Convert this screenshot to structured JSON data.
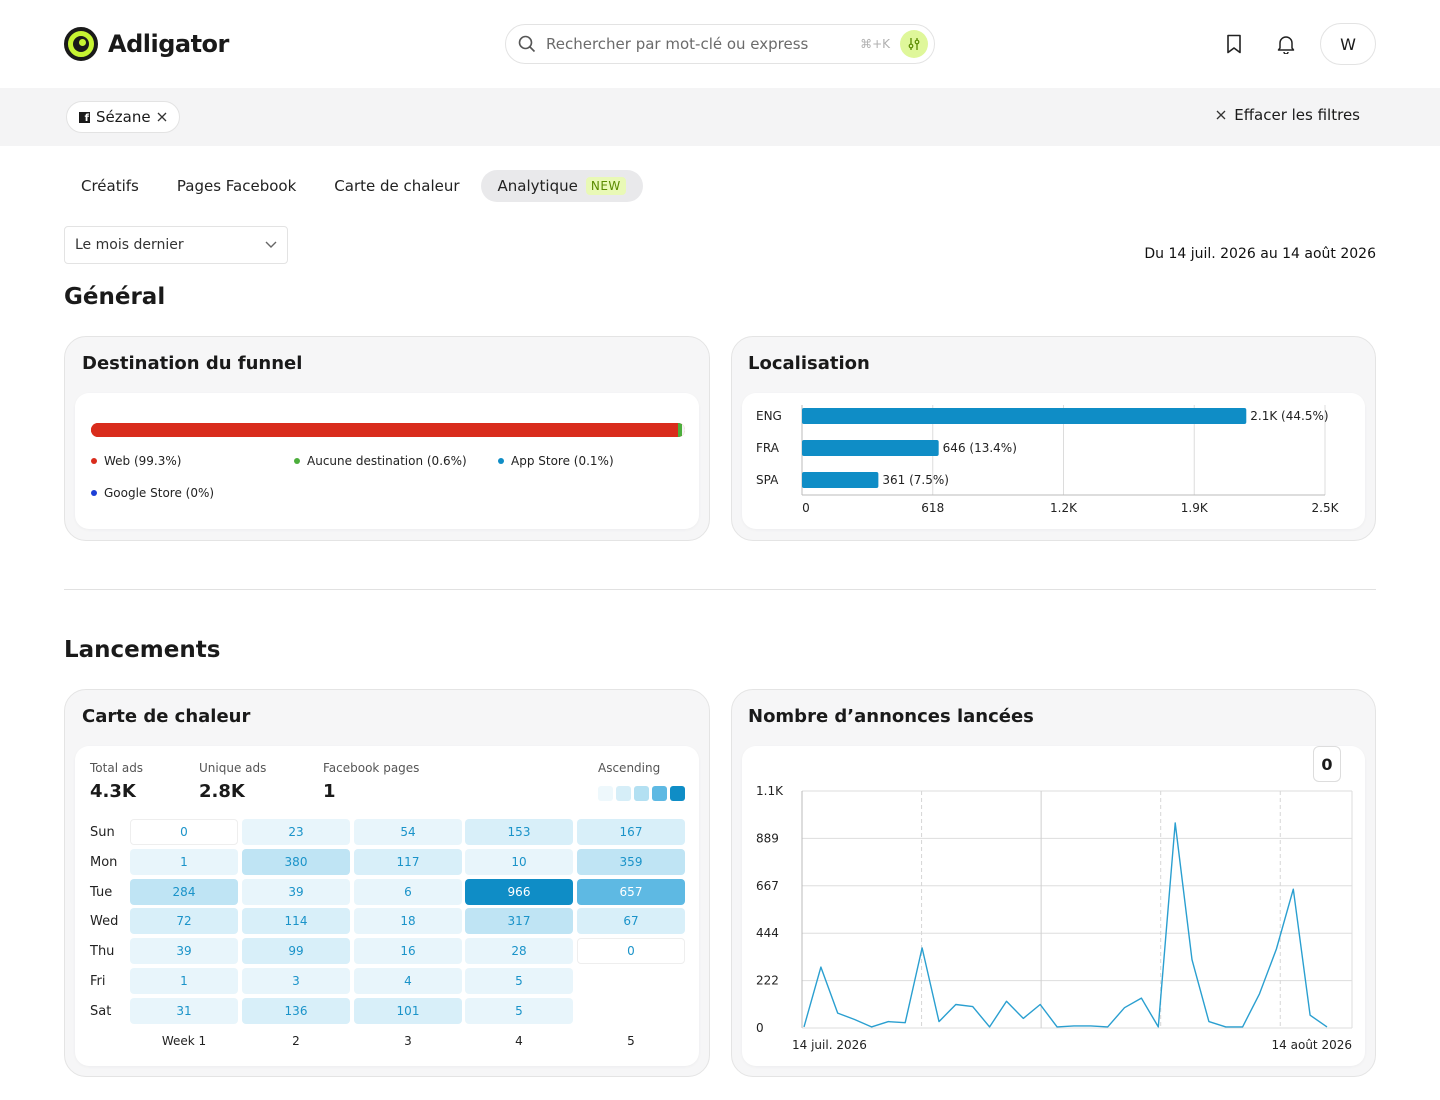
{
  "app": {
    "name": "Adligator"
  },
  "search": {
    "placeholder": "Rechercher par mot-clé ou express",
    "shortcut": "⌘+K"
  },
  "user": {
    "initial": "W"
  },
  "filters": {
    "chip_label": "Sézane",
    "clear_label": "Effacer les filtres"
  },
  "tabs": [
    {
      "label": "Créatifs"
    },
    {
      "label": "Pages Facebook"
    },
    {
      "label": "Carte de chaleur"
    },
    {
      "label": "Analytique",
      "badge": "NEW",
      "active": true
    }
  ],
  "period": {
    "selected": "Le mois dernier",
    "range": "Du 14 juil. 2026 au 14 août 2026"
  },
  "sections": {
    "general": "Général",
    "launches": "Lancements"
  },
  "funnel": {
    "title": "Destination du funnel",
    "legend": [
      {
        "label": "Web (99.3%)",
        "color": "#d92c1c",
        "share": 99.3
      },
      {
        "label": "Aucune destination (0.6%)",
        "color": "#4cae3c",
        "share": 0.6
      },
      {
        "label": "App Store (0.1%)",
        "color": "#0f8dc6",
        "share": 0.1
      },
      {
        "label": "Google Store (0%)",
        "color": "#1d3fd6",
        "share": 0
      }
    ]
  },
  "location": {
    "title": "Localisation",
    "chart_data": {
      "type": "bar",
      "orientation": "horizontal",
      "categories": [
        "ENG",
        "FRA",
        "SPA"
      ],
      "values": [
        2100,
        646,
        361
      ],
      "data_labels": [
        "2.1K (44.5%)",
        "646 (13.4%)",
        "361 (7.5%)"
      ],
      "xticks": [
        "0",
        "618",
        "1.2K",
        "1.9K",
        "2.5K"
      ],
      "xlim": [
        0,
        2472
      ],
      "color": "#0f8dc6",
      "grid": true
    }
  },
  "heatmap": {
    "title": "Carte de chaleur",
    "stats": [
      {
        "label": "Total ads",
        "value": "4.3K"
      },
      {
        "label": "Unique ads",
        "value": "2.8K"
      },
      {
        "label": "Facebook pages",
        "value": "1"
      }
    ],
    "scale_label": "Ascending",
    "scale_colors": [
      "#eef8fc",
      "#d6eef8",
      "#b3e0f2",
      "#5eb9e3",
      "#0f8dc6"
    ],
    "rows": [
      "Sun",
      "Mon",
      "Tue",
      "Wed",
      "Thu",
      "Fri",
      "Sat"
    ],
    "cols": [
      "Week 1",
      "2",
      "3",
      "4",
      "5"
    ],
    "values": [
      [
        "0",
        "23",
        "54",
        "153",
        "167"
      ],
      [
        "1",
        "380",
        "117",
        "10",
        "359"
      ],
      [
        "284",
        "39",
        "6",
        "966",
        "657"
      ],
      [
        "72",
        "114",
        "18",
        "317",
        "67"
      ],
      [
        "39",
        "99",
        "16",
        "28",
        "0"
      ],
      [
        "1",
        "3",
        "4",
        "5",
        null
      ],
      [
        "31",
        "136",
        "101",
        "5",
        null
      ]
    ]
  },
  "launches": {
    "title": "Nombre d’annonces lancées",
    "button_label": "0",
    "chart_data": {
      "type": "line",
      "yticks": [
        "0",
        "222",
        "444",
        "667",
        "889",
        "1.1K"
      ],
      "ylim": [
        0,
        1110
      ],
      "xlabels": [
        "14 juil. 2026",
        "14 août 2026"
      ],
      "color": "#2a9fd0",
      "grid": true,
      "values": [
        5,
        285,
        70,
        40,
        5,
        30,
        25,
        375,
        30,
        110,
        100,
        5,
        125,
        45,
        110,
        5,
        10,
        10,
        5,
        95,
        140,
        5,
        960,
        320,
        30,
        5,
        5,
        160,
        370,
        650,
        60,
        5
      ]
    }
  }
}
